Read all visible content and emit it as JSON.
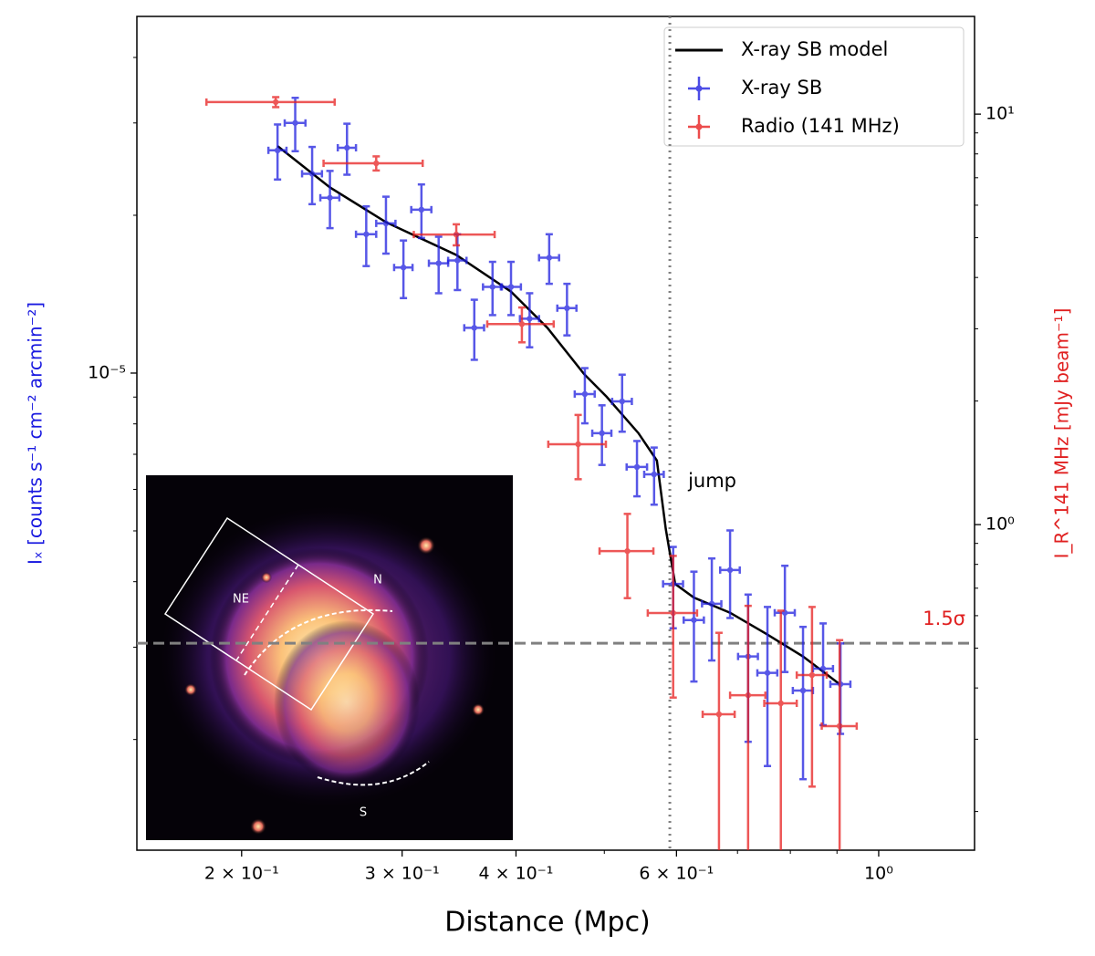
{
  "chart_data": {
    "type": "errorbar",
    "xlabel": "Distance (Mpc)",
    "ylabel": "Iₓ [counts s⁻¹ cm⁻² arcmin⁻²]",
    "y2label": "I_R^141 MHz [mJy beam⁻¹]",
    "xscale": "log",
    "yscale": "log",
    "y2scale": "log",
    "xlim": [
      0.1535,
      1.274
    ],
    "ylim": [
      1.23e-06,
      4.79e-05
    ],
    "y2lim": [
      0.161,
      17.3
    ],
    "xticks": [
      {
        "value": 0.2,
        "label": "2 × 10⁻¹"
      },
      {
        "value": 0.3,
        "label": "3 × 10⁻¹"
      },
      {
        "value": 0.4,
        "label": "4 × 10⁻¹"
      },
      {
        "value": 0.6,
        "label": "6 × 10⁻¹"
      },
      {
        "value": 1,
        "label": "10⁰"
      }
    ],
    "xminorticks": [
      0.5,
      0.7,
      0.8,
      0.9
    ],
    "yticks": [
      {
        "value": 1e-05,
        "label": "10⁻⁵"
      }
    ],
    "yminorticks": [
      2e-06,
      3e-06,
      4e-06,
      5e-06,
      6e-06,
      7e-06,
      8e-06,
      9e-06,
      2e-05,
      3e-05,
      4e-05
    ],
    "y2ticks": [
      {
        "value": 1,
        "label": "10⁰"
      },
      {
        "value": 10,
        "label": "10¹"
      }
    ],
    "y2minorticks": [
      0.2,
      0.3,
      0.4,
      0.5,
      0.6,
      0.7,
      0.8,
      0.9,
      2,
      3,
      4,
      5,
      6,
      7,
      8,
      9
    ],
    "legend": "upper right",
    "vline": {
      "x": 0.59,
      "label": "jump"
    },
    "hline": {
      "y2": 0.514,
      "label": "1.5σ"
    },
    "inset_labels": [
      "NE",
      "N",
      "S"
    ],
    "series": [
      {
        "name": "X-ray SB model",
        "type": "line",
        "color": "#000000",
        "axis": "y",
        "x": [
          0.219,
          0.25,
          0.288,
          0.344,
          0.395,
          0.433,
          0.475,
          0.503,
          0.545,
          0.571,
          0.584,
          0.598,
          0.627,
          0.687,
          0.753,
          0.826,
          0.906
        ],
        "values": [
          2.71e-05,
          2.26e-05,
          1.94e-05,
          1.68e-05,
          1.43e-05,
          1.22e-05,
          9.96e-06,
          9.01e-06,
          7.68e-06,
          6.81e-06,
          5.04e-06,
          3.96e-06,
          3.73e-06,
          3.49e-06,
          3.18e-06,
          2.88e-06,
          2.55e-06
        ]
      },
      {
        "name": "X-ray SB",
        "type": "errorbar",
        "color": "#2020e0",
        "axis": "y",
        "x": [
          0.219,
          0.229,
          0.239,
          0.25,
          0.261,
          0.274,
          0.288,
          0.301,
          0.315,
          0.329,
          0.345,
          0.36,
          0.377,
          0.395,
          0.414,
          0.435,
          0.455,
          0.476,
          0.497,
          0.523,
          0.543,
          0.567,
          0.595,
          0.627,
          0.656,
          0.687,
          0.719,
          0.755,
          0.789,
          0.826,
          0.869,
          0.908
        ],
        "xerr": [
          0.005,
          0.006,
          0.006,
          0.006,
          0.006,
          0.007,
          0.007,
          0.007,
          0.008,
          0.008,
          0.008,
          0.009,
          0.009,
          0.01,
          0.01,
          0.011,
          0.011,
          0.012,
          0.012,
          0.013,
          0.014,
          0.014,
          0.015,
          0.016,
          0.016,
          0.017,
          0.018,
          0.019,
          0.02,
          0.021,
          0.022,
          0.023
        ],
        "values": [
          2.66e-05,
          3e-05,
          2.4e-05,
          2.16e-05,
          2.69e-05,
          1.84e-05,
          1.93e-05,
          1.59e-05,
          2.05e-05,
          1.62e-05,
          1.64e-05,
          1.22e-05,
          1.46e-05,
          1.46e-05,
          1.27e-05,
          1.66e-05,
          1.33e-05,
          9.12e-06,
          7.68e-06,
          8.83e-06,
          6.62e-06,
          6.41e-06,
          3.96e-06,
          3.38e-06,
          3.63e-06,
          4.21e-06,
          2.88e-06,
          2.68e-06,
          3.49e-06,
          2.48e-06,
          2.73e-06,
          2.55e-06
        ],
        "yerr": [
          3.2e-06,
          3.5e-06,
          3e-06,
          2.7e-06,
          3e-06,
          2.4e-06,
          2.4e-06,
          2e-06,
          2.4e-06,
          2e-06,
          2e-06,
          1.6e-06,
          1.7e-06,
          1.7e-06,
          1.5e-06,
          1.8e-06,
          1.5e-06,
          1.1e-06,
          1e-06,
          1.1e-06,
          8e-07,
          8e-07,
          7e-07,
          8e-07,
          8e-07,
          8e-07,
          9e-07,
          9e-07,
          8e-07,
          8e-07,
          6e-07,
          5e-07
        ]
      },
      {
        "name": "Radio (141 MHz)",
        "type": "errorbar",
        "color": "#e82020",
        "axis": "y2",
        "x": [
          0.218,
          0.281,
          0.344,
          0.406,
          0.468,
          0.53,
          0.595,
          0.668,
          0.719,
          0.781,
          0.845,
          0.906
        ],
        "xerr": [
          0.035,
          0.035,
          0.035,
          0.034,
          0.034,
          0.036,
          0.037,
          0.027,
          0.032,
          0.032,
          0.032,
          0.04
        ],
        "values": [
          10.7,
          7.59,
          5.09,
          3.08,
          1.57,
          0.862,
          0.609,
          0.345,
          0.384,
          0.367,
          0.43,
          0.323
        ],
        "yerr": [
          0.3,
          0.3,
          0.3,
          0.3,
          0.28,
          0.2,
          0.23,
          0.2,
          0.25,
          0.25,
          0.2,
          0.2
        ]
      }
    ]
  }
}
